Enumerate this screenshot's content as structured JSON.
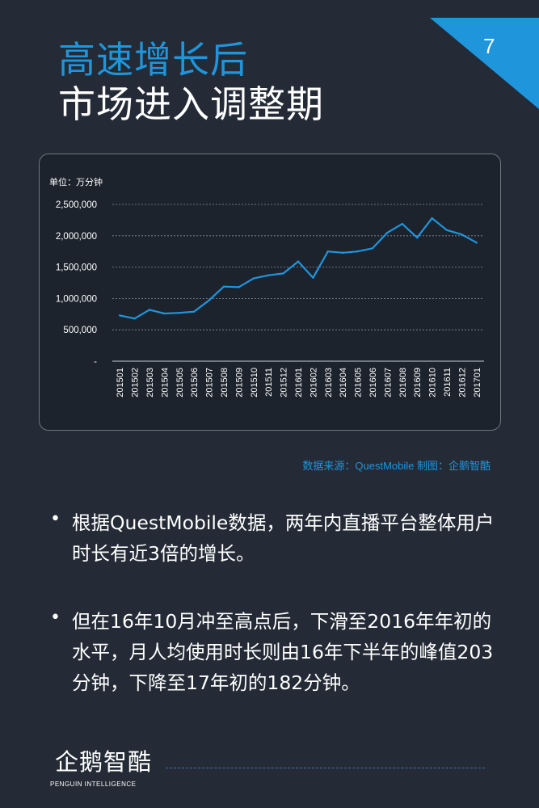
{
  "page_number": "7",
  "title": {
    "line1": "高速增长后",
    "line2": "市场进入调整期"
  },
  "chart_data": {
    "type": "line",
    "unit_label": "单位：万分钟",
    "categories": [
      "201501",
      "201502",
      "201503",
      "201504",
      "201505",
      "201506",
      "201507",
      "201508",
      "201509",
      "201510",
      "201511",
      "201512",
      "201601",
      "201602",
      "201603",
      "201604",
      "201605",
      "201606",
      "201607",
      "201608",
      "201609",
      "201610",
      "201611",
      "201612",
      "201701"
    ],
    "values": [
      730000,
      680000,
      820000,
      760000,
      770000,
      790000,
      970000,
      1190000,
      1180000,
      1320000,
      1370000,
      1400000,
      1590000,
      1330000,
      1750000,
      1730000,
      1750000,
      1800000,
      2050000,
      2190000,
      1970000,
      2280000,
      2090000,
      2020000,
      1890000
    ],
    "yticks": [
      "2,500,000",
      "2,000,000",
      "1,500,000",
      "1,000,000",
      "500,000",
      "-"
    ],
    "ylim": [
      0,
      2500000
    ],
    "grid": true,
    "line_color": "#1f95dc"
  },
  "source": "数据来源：QuestMobile 制图：企鹅智酷",
  "bullets": [
    "根据QuestMobile数据，两年内直播平台整体用户时长有近3倍的增长。",
    "但在16年10月冲至高点后，下滑至2016年年初的水平，月人均使用时长则由16年下半年的峰值203分钟，下降至17年初的182分钟。"
  ],
  "logo": {
    "cn": "企鹅智酷",
    "en": "PENGUIN INTELLIGENCE"
  },
  "colors": {
    "background": "#242b36",
    "accent": "#1f95dc"
  }
}
